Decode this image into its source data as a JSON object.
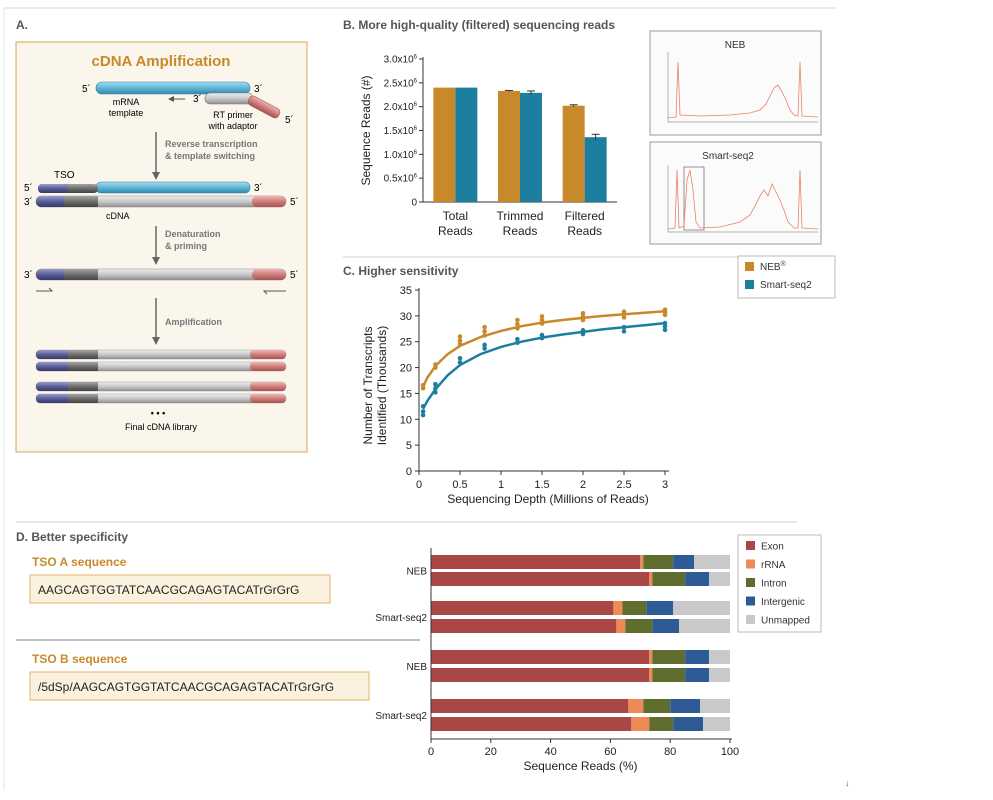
{
  "colors": {
    "neb": "#c8892a",
    "smartseq": "#1d7fa0",
    "title": "#c8892a",
    "exon": "#a94646",
    "rrna": "#ee8a55",
    "intron": "#5f6e2e",
    "intergenic": "#2e5a96",
    "unmapped": "#c9c9cb",
    "panel_bg": "#fbf6ec",
    "panel_border": "#d9a44f",
    "mrna": "#6fbfda",
    "adaptor": "#c97a78",
    "tso": "#4c4f82",
    "gray_strand": "#c9c9c9"
  },
  "panelA": {
    "label": "A.",
    "title": "cDNA Amplification",
    "five_prime": "5´",
    "three_prime": "3´",
    "mrna_label_1": "mRNA",
    "mrna_label_2": "template",
    "rt_label_1": "RT primer",
    "rt_label_2": "with adaptor",
    "step1_a": "Reverse transcription",
    "step1_b": "& template switching",
    "tso_label": "TSO",
    "cdna_label": "cDNA",
    "step2_a": "Denaturation",
    "step2_b": "& priming",
    "step3": "Amplification",
    "dots": "• • •",
    "final_label": "Final cDNA library"
  },
  "panelB": {
    "label": "B. More high-quality (filtered) sequencing reads",
    "inset_neb": "NEB",
    "inset_smart": "Smart-seq2",
    "exponent": "6"
  },
  "panelC": {
    "label": "C. Higher sensitivity",
    "legend_neb": "NEB",
    "legend_neb_sup": "®",
    "legend_smart": "Smart-seq2"
  },
  "panelD": {
    "label": "D. Better specificity",
    "tso_a_title": "TSO A sequence",
    "tso_a_seq": "AAGCAGTGGTATCAACGCAGAGTACATrGrGrG",
    "tso_b_title": "TSO B sequence",
    "tso_b_seq": "/5dSp/AAGCAGTGGTATCAACGCAGAGTACATrGrGrG",
    "group_labels": [
      "NEB",
      "Smart-seq2",
      "NEB",
      "Smart-seq2"
    ]
  },
  "chart_data": [
    {
      "id": "B",
      "type": "bar",
      "title": "More high-quality (filtered) sequencing reads",
      "categories": [
        "Total Reads",
        "Trimmed Reads",
        "Filtered Reads"
      ],
      "category_lines": [
        [
          "Total",
          "Reads"
        ],
        [
          "Trimmed",
          "Reads"
        ],
        [
          "Filtered",
          "Reads"
        ]
      ],
      "series": [
        {
          "name": "NEB",
          "values": [
            2400000,
            2330000,
            2020000
          ],
          "errors": [
            0,
            10000,
            20000
          ]
        },
        {
          "name": "Smart-seq2",
          "values": [
            2400000,
            2290000,
            1360000
          ],
          "errors": [
            0,
            40000,
            60000
          ]
        }
      ],
      "ylabel": "Sequence Reads (#)",
      "ylim": [
        0,
        3000000
      ],
      "yticks": [
        0,
        500000,
        1000000,
        1500000,
        2000000,
        2500000,
        3000000
      ],
      "ytick_labels": [
        "0",
        "0.5x10",
        "1.0x10",
        "1.5x10",
        "2.0x10",
        "2.5x10",
        "3.0x10"
      ]
    },
    {
      "id": "C",
      "type": "scatter",
      "title": "Higher sensitivity",
      "xlabel": "Sequencing Depth (Millions of Reads)",
      "ylabel_lines": [
        "Number of Transcripts",
        "Identified (Thousands)"
      ],
      "xlim": [
        0,
        3
      ],
      "ylim": [
        0,
        35
      ],
      "xticks": [
        0,
        0.5,
        1,
        1.5,
        2,
        2.5,
        3
      ],
      "xtick_labels": [
        "0",
        "0.5",
        "1",
        "1.5",
        "2",
        "2.5",
        "3"
      ],
      "yticks": [
        0,
        5,
        10,
        15,
        20,
        25,
        30,
        35
      ],
      "ytick_labels": [
        "0",
        "5",
        "10",
        "15",
        "20",
        "25",
        "30",
        "35"
      ],
      "series": [
        {
          "name": "NEB",
          "points": [
            [
              0.05,
              16.0
            ],
            [
              0.05,
              16.6
            ],
            [
              0.2,
              20.0
            ],
            [
              0.2,
              20.6
            ],
            [
              0.5,
              24.5
            ],
            [
              0.5,
              25.2
            ],
            [
              0.5,
              26.0
            ],
            [
              0.8,
              26.2
            ],
            [
              0.8,
              27.0
            ],
            [
              0.8,
              27.8
            ],
            [
              1.2,
              27.6
            ],
            [
              1.2,
              28.4
            ],
            [
              1.2,
              29.2
            ],
            [
              1.5,
              28.5
            ],
            [
              1.5,
              29.2
            ],
            [
              1.5,
              29.9
            ],
            [
              2,
              29.2
            ],
            [
              2,
              29.9
            ],
            [
              2,
              30.5
            ],
            [
              2.5,
              29.7
            ],
            [
              2.5,
              30.3
            ],
            [
              2.5,
              30.8
            ],
            [
              3,
              30.2
            ],
            [
              3,
              30.7
            ],
            [
              3,
              31.2
            ]
          ],
          "curve": [
            [
              0.05,
              16.3
            ],
            [
              0.1,
              18.0
            ],
            [
              0.2,
              20.3
            ],
            [
              0.35,
              22.6
            ],
            [
              0.5,
              24.2
            ],
            [
              0.75,
              25.9
            ],
            [
              1.0,
              27.1
            ],
            [
              1.25,
              28.0
            ],
            [
              1.5,
              28.7
            ],
            [
              1.75,
              29.2
            ],
            [
              2.0,
              29.6
            ],
            [
              2.25,
              30.0
            ],
            [
              2.5,
              30.3
            ],
            [
              2.75,
              30.6
            ],
            [
              3.0,
              30.9
            ]
          ]
        },
        {
          "name": "Smart-seq2",
          "points": [
            [
              0.05,
              10.8
            ],
            [
              0.05,
              11.5
            ],
            [
              0.05,
              12.5
            ],
            [
              0.2,
              15.2
            ],
            [
              0.2,
              16.0
            ],
            [
              0.2,
              16.8
            ],
            [
              0.5,
              21.0
            ],
            [
              0.5,
              21.8
            ],
            [
              0.8,
              23.7
            ],
            [
              0.8,
              24.4
            ],
            [
              1.2,
              24.8
            ],
            [
              1.2,
              25.5
            ],
            [
              1.5,
              25.7
            ],
            [
              1.5,
              26.3
            ],
            [
              2,
              26.5
            ],
            [
              2,
              27.2
            ],
            [
              2.5,
              27.0
            ],
            [
              2.5,
              27.8
            ],
            [
              3,
              27.3
            ],
            [
              3,
              28.0
            ],
            [
              3,
              28.6
            ]
          ],
          "curve": [
            [
              0.05,
              12.0
            ],
            [
              0.1,
              13.5
            ],
            [
              0.2,
              15.8
            ],
            [
              0.35,
              18.5
            ],
            [
              0.5,
              20.5
            ],
            [
              0.75,
              22.6
            ],
            [
              1.0,
              24.0
            ],
            [
              1.25,
              25.0
            ],
            [
              1.5,
              25.8
            ],
            [
              1.75,
              26.4
            ],
            [
              2.0,
              26.9
            ],
            [
              2.25,
              27.4
            ],
            [
              2.5,
              27.8
            ],
            [
              2.75,
              28.2
            ],
            [
              3.0,
              28.6
            ]
          ]
        }
      ]
    },
    {
      "id": "D",
      "type": "bar",
      "orientation": "horizontal-stacked",
      "title": "Better specificity",
      "xlabel": "Sequence Reads (%)",
      "xlim": [
        0,
        100
      ],
      "xticks": [
        0,
        20,
        40,
        60,
        80,
        100
      ],
      "xtick_labels": [
        "0",
        "20",
        "40",
        "60",
        "80",
        "100"
      ],
      "series_names": [
        "Exon",
        "rRNA",
        "Intron",
        "Intergenic",
        "Unmapped"
      ],
      "rows": [
        {
          "group": "TSO A NEB",
          "values": [
            70,
            1,
            10,
            7,
            12
          ]
        },
        {
          "group": "TSO A NEB",
          "values": [
            73,
            1,
            11,
            8,
            7
          ]
        },
        {
          "group": "TSO A Smart-seq2",
          "values": [
            61,
            3,
            8,
            9,
            19
          ]
        },
        {
          "group": "TSO A Smart-seq2",
          "values": [
            62,
            3,
            9,
            9,
            17
          ]
        },
        {
          "group": "TSO B NEB",
          "values": [
            73,
            1,
            11,
            8,
            7
          ]
        },
        {
          "group": "TSO B NEB",
          "values": [
            73,
            1,
            11,
            8,
            7
          ]
        },
        {
          "group": "TSO B Smart-seq2",
          "values": [
            66,
            5,
            9,
            10,
            10
          ]
        },
        {
          "group": "TSO B Smart-seq2",
          "values": [
            67,
            6,
            8,
            10,
            9
          ]
        }
      ]
    }
  ]
}
